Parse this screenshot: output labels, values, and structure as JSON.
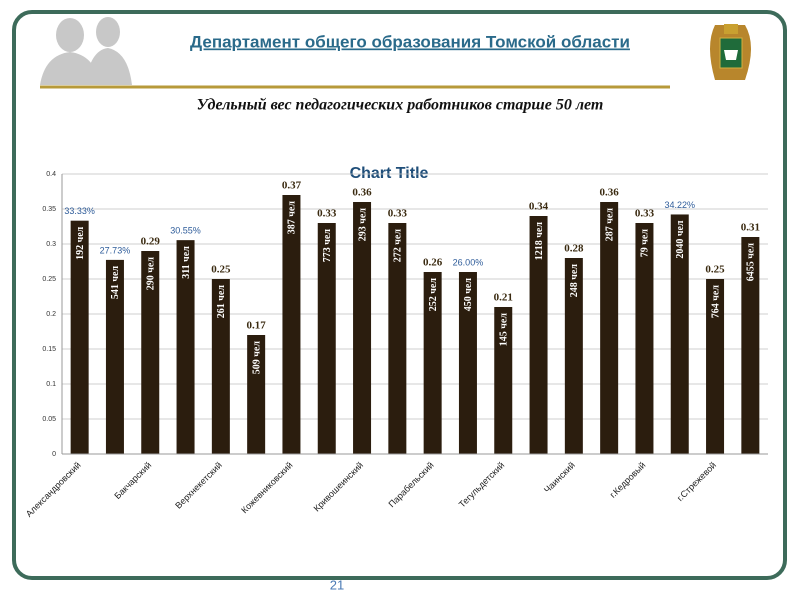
{
  "header": {
    "title": "Департамент общего образования Томской области",
    "subtitle": "Удельный вес педагогических работников старше 50 лет"
  },
  "chart_data": {
    "type": "bar",
    "title": "Chart Title",
    "categories": [
      "Александровский",
      null,
      "Бакчарский",
      null,
      "Верхнекетский",
      null,
      "Кожевниковский",
      null,
      "Кривошеинский",
      null,
      "Парабельский",
      null,
      "Тегульдетский",
      null,
      "Чаинский",
      null,
      "г.Кедровый",
      null,
      "г.Стрежевой",
      null
    ],
    "values": [
      0.3333,
      0.2773,
      0.29,
      0.3055,
      0.25,
      0.17,
      0.37,
      0.33,
      0.36,
      0.33,
      0.26,
      0.26,
      0.21,
      0.34,
      0.28,
      0.36,
      0.33,
      0.3422,
      0.25,
      0.31
    ],
    "value_labels": [
      "33.33%",
      "27.73%",
      "0.29",
      "30.55%",
      "0.25",
      "0.17",
      "0.37",
      "0.33",
      "0.36",
      "0.33",
      "0.26",
      "26.00%",
      "0.21",
      "0.34",
      "0.28",
      "0.36",
      "0.33",
      "34.22%",
      "0.25",
      "0.31"
    ],
    "inner_labels": [
      "192 чел",
      "541 чел",
      "290 чел",
      "311 чел",
      "261 чел",
      "509 чел",
      "387 чел",
      "773 чел",
      "293 чел",
      "272 чел",
      "252 чел",
      "450 чел",
      "145 чел",
      "1218 чел",
      "248 чел",
      "287 чел",
      "79 чел",
      "2040 чел",
      "764 чел",
      "6455 чел"
    ],
    "color": "#2b1d0e",
    "ylim": [
      0,
      0.4
    ],
    "yticks": [
      0,
      0.05,
      0.1,
      0.15,
      0.2,
      0.25,
      0.3,
      0.35,
      0.4
    ],
    "grid": true
  },
  "page_number": "21"
}
